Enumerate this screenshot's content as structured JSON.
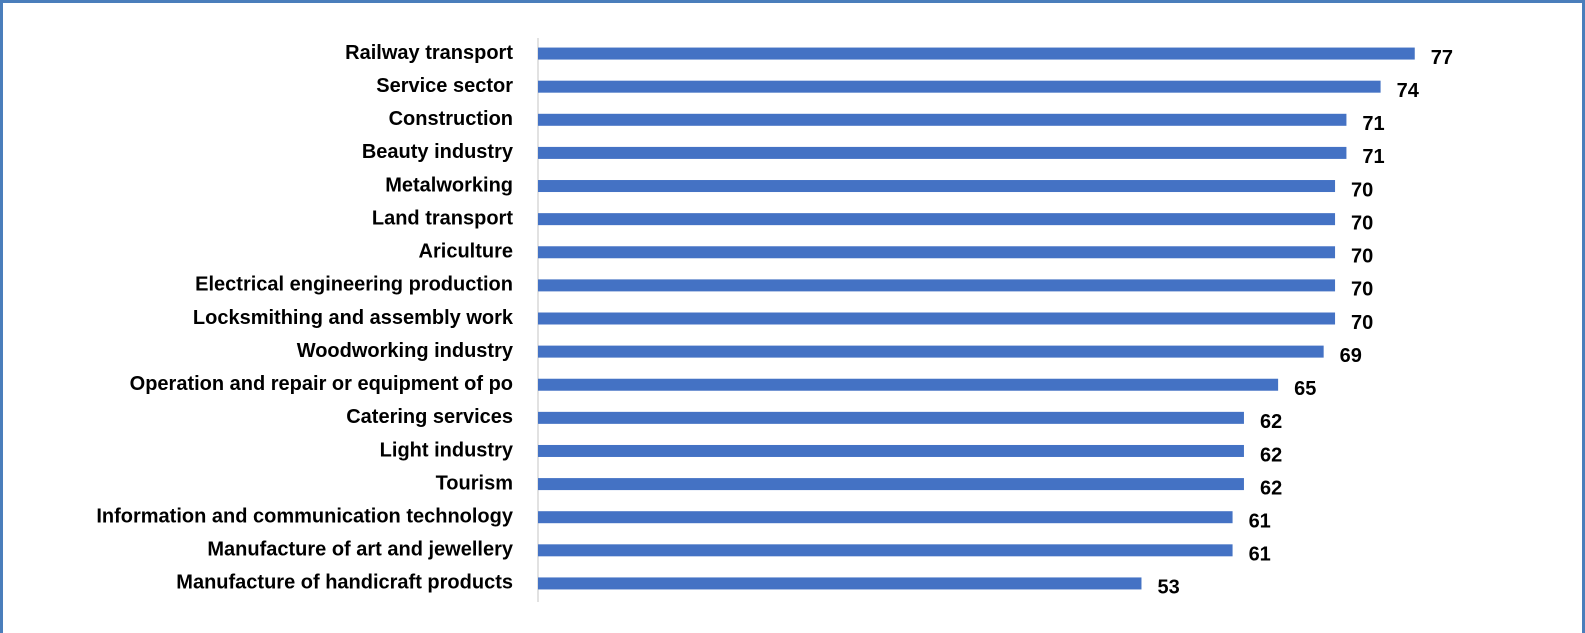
{
  "chart_data": {
    "type": "bar",
    "orientation": "horizontal",
    "categories": [
      "Railway transport",
      "Service sector",
      "Construction",
      "Beauty industry",
      "Metalworking",
      "Land transport",
      "Ariculture",
      "Electrical engineering production",
      "Locksmithing and assembly work",
      "Woodworking industry",
      "Operation and repair or equipment of po",
      "Catering services",
      "Light industry",
      "Tourism",
      "Information and communication technology",
      "Manufacture of art and jewellery",
      "Manufacture of handicraft products"
    ],
    "values": [
      77,
      74,
      71,
      71,
      70,
      70,
      70,
      70,
      70,
      69,
      65,
      62,
      62,
      62,
      61,
      61,
      53
    ],
    "color": "#4472c4",
    "xlim": [
      0,
      88
    ],
    "grid": false
  }
}
